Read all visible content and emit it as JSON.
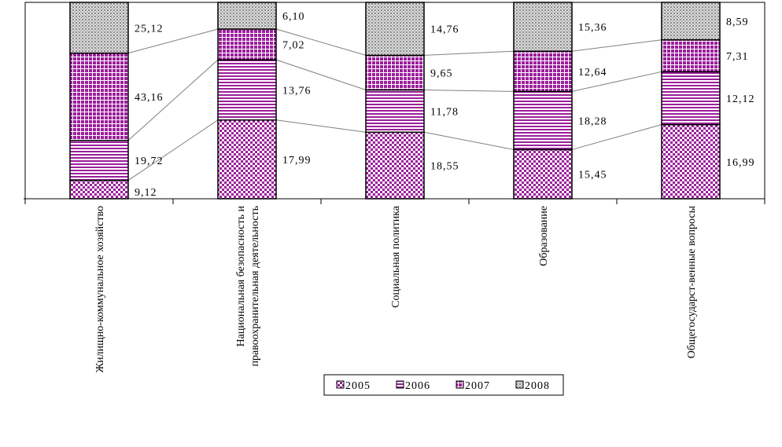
{
  "chart_data": {
    "type": "bar",
    "stacked": true,
    "percent_stacked": true,
    "categories": [
      [
        "Жилищно-коммунальное хозяйство"
      ],
      [
        "Национальная безопасность и",
        "правоохранительная деятельность"
      ],
      [
        "Социальная политика"
      ],
      [
        "Образование"
      ],
      [
        "Общегосударст-венные вопросы"
      ]
    ],
    "series": [
      {
        "name": "2005",
        "values": [
          9.12,
          17.99,
          18.55,
          15.45,
          16.99
        ],
        "labels": [
          "9,12",
          "17,99",
          "18,55",
          "15,45",
          "16,99"
        ],
        "color": "#9b1f9b",
        "pattern": "checker"
      },
      {
        "name": "2006",
        "values": [
          19.72,
          13.76,
          11.78,
          18.28,
          12.12
        ],
        "labels": [
          "19,72",
          "13,76",
          "11,78",
          "18,28",
          "12,12"
        ],
        "color": "#9b1f9b",
        "pattern": "horizontal-lines"
      },
      {
        "name": "2007",
        "values": [
          43.16,
          7.02,
          9.65,
          12.64,
          7.31
        ],
        "labels": [
          "43,16",
          "7,02",
          "9,65",
          "12,64",
          "7,31"
        ],
        "color": "#9b1f9b",
        "pattern": "grid"
      },
      {
        "name": "2008",
        "values": [
          25.12,
          6.1,
          14.76,
          15.36,
          8.59
        ],
        "labels": [
          "25,12",
          "6,10",
          "14,76",
          "15,36",
          "8,59"
        ],
        "color": "#a0a0a0",
        "pattern": "dots"
      }
    ],
    "title": "",
    "xlabel": "",
    "ylabel": "",
    "legend_position": "bottom-center",
    "series_lines": true,
    "grid": false
  }
}
